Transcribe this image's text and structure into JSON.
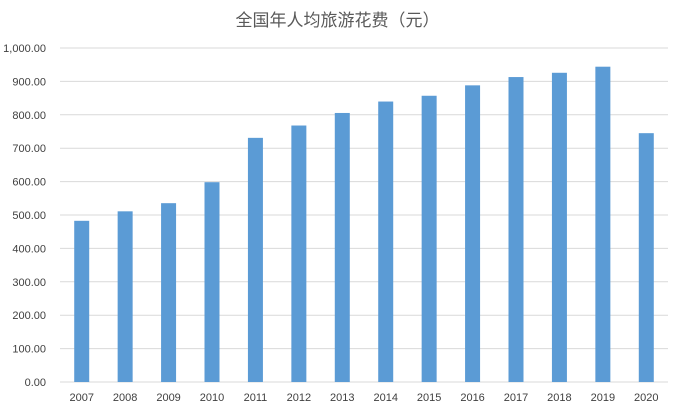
{
  "chart_data": {
    "type": "bar",
    "title": "全国年人均旅游花费（元）",
    "xlabel": "",
    "ylabel": "",
    "categories": [
      "2007",
      "2008",
      "2009",
      "2010",
      "2011",
      "2012",
      "2013",
      "2014",
      "2015",
      "2016",
      "2017",
      "2018",
      "2019",
      "2020"
    ],
    "values": [
      482.6,
      511.0,
      535.4,
      598.2,
      731.0,
      767.9,
      805.5,
      839.7,
      857.0,
      888.2,
      913.0,
      925.8,
      944.0,
      745.0
    ],
    "ylim": [
      0,
      1000
    ],
    "ytick_step": 100,
    "ytick_labels": [
      "0.00",
      "100.00",
      "200.00",
      "300.00",
      "400.00",
      "500.00",
      "600.00",
      "700.00",
      "800.00",
      "900.00",
      "1,000.00"
    ],
    "grid": true,
    "legend": "none",
    "bar_color": "#5b9bd5",
    "grid_color": "#d9d9d9"
  }
}
